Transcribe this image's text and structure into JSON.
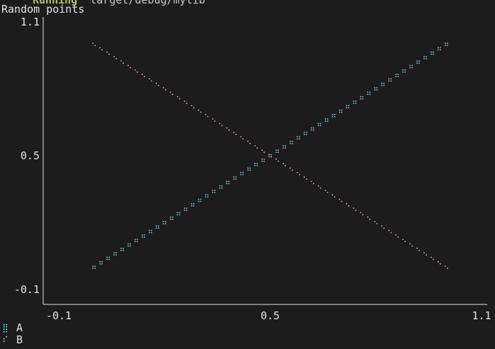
{
  "terminal": {
    "command_status": "Running",
    "command_path": "`target/debug/mylib`"
  },
  "colors": {
    "background": "#1c1c1c",
    "axis": "#e4e4e4",
    "text": "#e4e4e4",
    "series_a": "#7ec8d2",
    "series_b": "#e3a1b0"
  },
  "chart_data": {
    "type": "scatter",
    "title": "Random points",
    "xlabel": "",
    "ylabel": "",
    "xlim": [
      -0.1,
      1.1
    ],
    "ylim": [
      -0.1,
      1.1
    ],
    "x_ticks": [
      "-0.1",
      "0.5",
      "1.1"
    ],
    "y_ticks": [
      "1.1",
      "0.5",
      "-0.1"
    ],
    "x_tick_values": [
      -0.1,
      0.5,
      1.1
    ],
    "y_tick_values": [
      1.1,
      0.5,
      -0.1
    ],
    "grid": false,
    "legend_position": "bottom-left",
    "series": [
      {
        "name": "A",
        "marker": "⣿",
        "color": "#7ec8d2",
        "trend": "increasing",
        "points": [
          [
            0.0,
            0.0
          ],
          [
            0.02,
            0.02
          ],
          [
            0.04,
            0.04
          ],
          [
            0.06,
            0.06
          ],
          [
            0.08,
            0.08
          ],
          [
            0.1,
            0.1
          ],
          [
            0.12,
            0.12
          ],
          [
            0.14,
            0.14
          ],
          [
            0.16,
            0.16
          ],
          [
            0.18,
            0.18
          ],
          [
            0.2,
            0.2
          ],
          [
            0.22,
            0.22
          ],
          [
            0.24,
            0.24
          ],
          [
            0.26,
            0.26
          ],
          [
            0.28,
            0.28
          ],
          [
            0.3,
            0.3
          ],
          [
            0.32,
            0.32
          ],
          [
            0.34,
            0.34
          ],
          [
            0.36,
            0.36
          ],
          [
            0.38,
            0.38
          ],
          [
            0.4,
            0.4
          ],
          [
            0.42,
            0.42
          ],
          [
            0.44,
            0.44
          ],
          [
            0.46,
            0.46
          ],
          [
            0.48,
            0.48
          ],
          [
            0.5,
            0.5
          ],
          [
            0.52,
            0.52
          ],
          [
            0.54,
            0.54
          ],
          [
            0.56,
            0.56
          ],
          [
            0.58,
            0.58
          ],
          [
            0.6,
            0.6
          ],
          [
            0.62,
            0.62
          ],
          [
            0.64,
            0.64
          ],
          [
            0.66,
            0.66
          ],
          [
            0.68,
            0.68
          ],
          [
            0.7,
            0.7
          ],
          [
            0.72,
            0.72
          ],
          [
            0.74,
            0.74
          ],
          [
            0.76,
            0.76
          ],
          [
            0.78,
            0.78
          ],
          [
            0.8,
            0.8
          ],
          [
            0.82,
            0.82
          ],
          [
            0.84,
            0.84
          ],
          [
            0.86,
            0.86
          ],
          [
            0.88,
            0.88
          ],
          [
            0.9,
            0.9
          ],
          [
            0.92,
            0.92
          ],
          [
            0.94,
            0.94
          ],
          [
            0.96,
            0.96
          ],
          [
            0.98,
            0.98
          ],
          [
            1.0,
            1.0
          ]
        ]
      },
      {
        "name": "B",
        "marker": "⠎",
        "color": "#e3a1b0",
        "trend": "decreasing",
        "points": [
          [
            0.0,
            1.0
          ],
          [
            0.02,
            0.98
          ],
          [
            0.04,
            0.96
          ],
          [
            0.06,
            0.94
          ],
          [
            0.08,
            0.92
          ],
          [
            0.1,
            0.9
          ],
          [
            0.12,
            0.88
          ],
          [
            0.14,
            0.86
          ],
          [
            0.16,
            0.84
          ],
          [
            0.18,
            0.82
          ],
          [
            0.2,
            0.8
          ],
          [
            0.22,
            0.78
          ],
          [
            0.24,
            0.76
          ],
          [
            0.26,
            0.74
          ],
          [
            0.28,
            0.72
          ],
          [
            0.3,
            0.7
          ],
          [
            0.32,
            0.68
          ],
          [
            0.34,
            0.66
          ],
          [
            0.36,
            0.64
          ],
          [
            0.38,
            0.62
          ],
          [
            0.4,
            0.6
          ],
          [
            0.42,
            0.58
          ],
          [
            0.44,
            0.56
          ],
          [
            0.46,
            0.54
          ],
          [
            0.48,
            0.52
          ],
          [
            0.5,
            0.5
          ],
          [
            0.52,
            0.48
          ],
          [
            0.54,
            0.46
          ],
          [
            0.56,
            0.44
          ],
          [
            0.58,
            0.42
          ],
          [
            0.6,
            0.4
          ],
          [
            0.62,
            0.38
          ],
          [
            0.64,
            0.36
          ],
          [
            0.66,
            0.34
          ],
          [
            0.68,
            0.32
          ],
          [
            0.7,
            0.3
          ],
          [
            0.72,
            0.28
          ],
          [
            0.74,
            0.26
          ],
          [
            0.76,
            0.24
          ],
          [
            0.78,
            0.22
          ],
          [
            0.8,
            0.2
          ],
          [
            0.82,
            0.18
          ],
          [
            0.84,
            0.16
          ],
          [
            0.86,
            0.14
          ],
          [
            0.88,
            0.12
          ],
          [
            0.9,
            0.1
          ],
          [
            0.92,
            0.08
          ],
          [
            0.94,
            0.06
          ],
          [
            0.96,
            0.04
          ],
          [
            0.98,
            0.02
          ],
          [
            1.0,
            0.0
          ]
        ]
      }
    ]
  }
}
